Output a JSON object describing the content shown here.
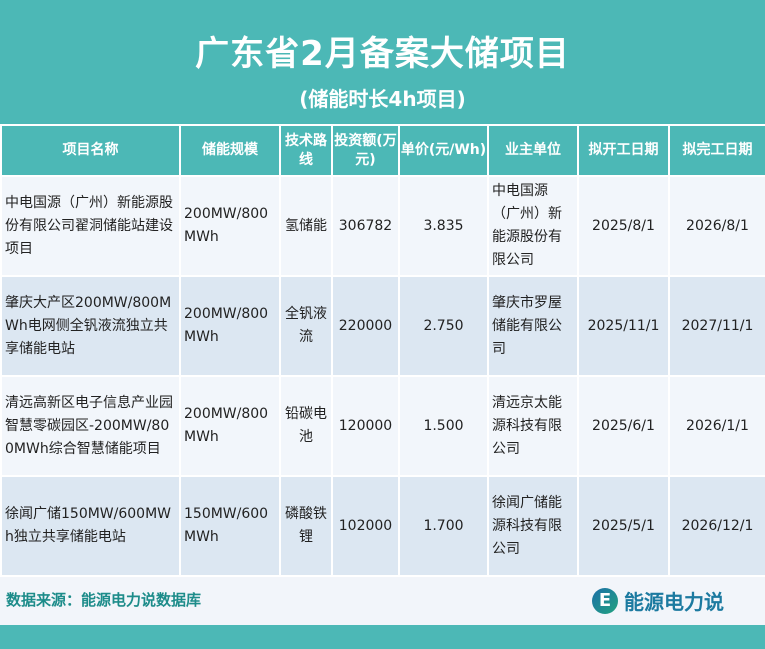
{
  "header": {
    "title": "广东省2月备案大储项目",
    "subtitle": "(储能时长4h项目)"
  },
  "table": {
    "columns": [
      "项目名称",
      "储能规模",
      "技术路线",
      "投资额(万元)",
      "单价(元/Wh)",
      "业主单位",
      "拟开工日期",
      "拟完工日期"
    ],
    "rows": [
      [
        "中电国源（广州）新能源股份有限公司翟洞储能站建设项目",
        "200MW/800MWh",
        "氢储能",
        "306782",
        "3.835",
        "中电国源（广州）新能源股份有限公司",
        "2025/8/1",
        "2026/8/1"
      ],
      [
        "肇庆大产区200MW/800MWh电网侧全钒液流独立共享储能电站",
        "200MW/800MWh",
        "全钒液流",
        "220000",
        "2.750",
        "肇庆市罗屋储能有限公司",
        "2025/11/1",
        "2027/11/1"
      ],
      [
        "清远高新区电子信息产业园智慧零碳园区-200MW/800MWh综合智慧储能项目",
        "200MW/800MWh",
        "铅碳电池",
        "120000",
        "1.500",
        "清远京太能源科技有限公司",
        "2025/6/1",
        "2026/1/1"
      ],
      [
        "徐闻广储150MW/600MWh独立共享储能电站",
        "150MW/600MWh",
        "磷酸铁锂",
        "102000",
        "1.700",
        "徐闻广储能源科技有限公司",
        "2025/5/1",
        "2026/12/1"
      ]
    ]
  },
  "footer": {
    "source": "数据来源：能源电力说数据库",
    "logo_text": "能源电力说",
    "logo_letter": "E"
  },
  "watermark": "能源电力说",
  "colors": {
    "accent": "#4cb8b6",
    "row_alt": "#dce7f2",
    "source_text": "#1d8c8a"
  }
}
